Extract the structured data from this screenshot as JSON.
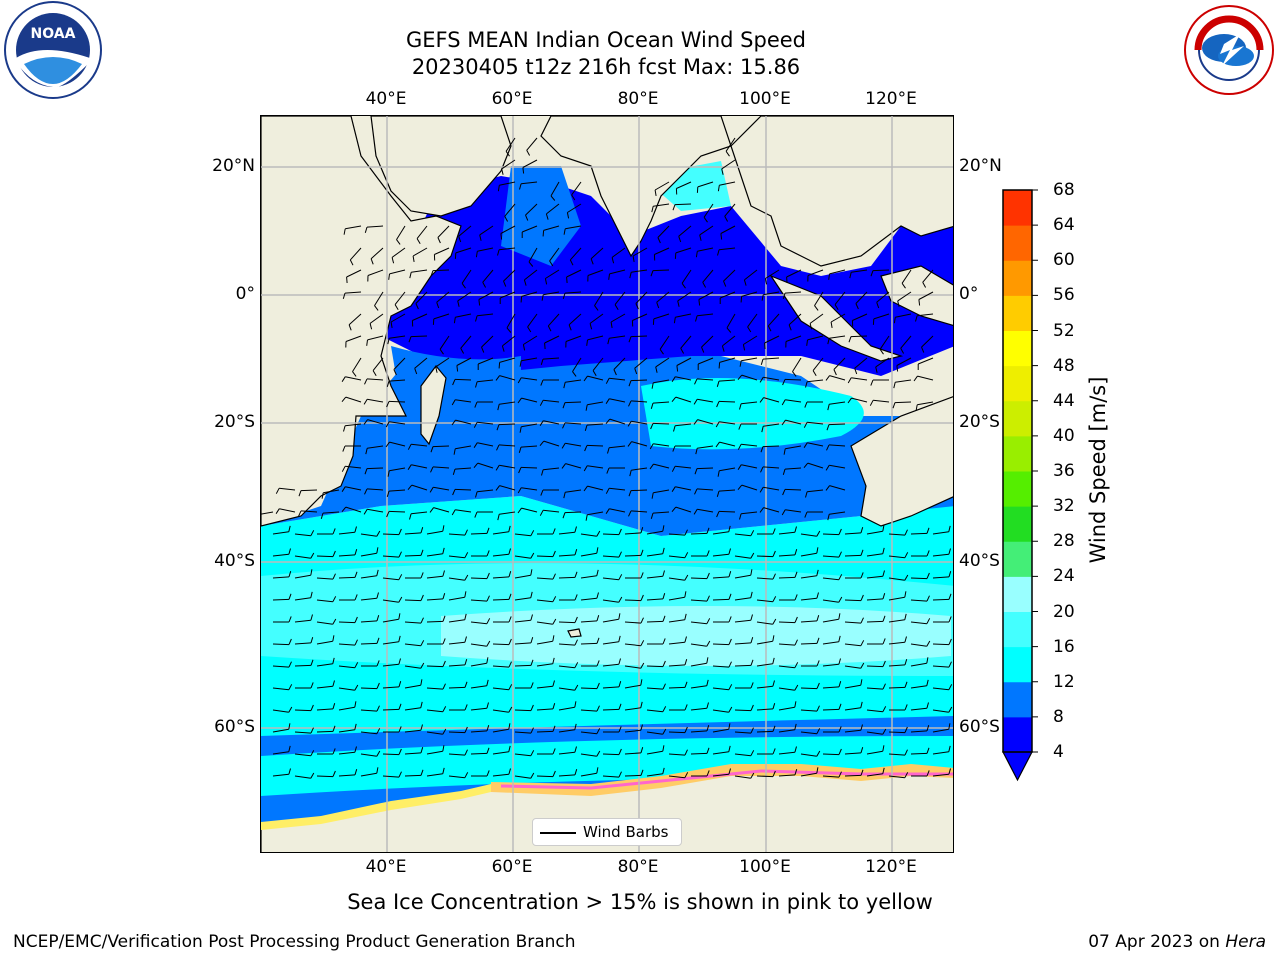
{
  "title": {
    "line1": "GEFS MEAN Indian Ocean Wind Speed",
    "line2": "20230405 t12z 216h fcst   Max: 15.86"
  },
  "map": {
    "lon_ticks": [
      "40°E",
      "60°E",
      "80°E",
      "100°E",
      "120°E"
    ],
    "lat_ticks": [
      "20°N",
      "0°",
      "20°S",
      "40°S",
      "60°S"
    ],
    "legend_label": "Wind Barbs",
    "gridlines": true
  },
  "colorbar": {
    "title": "Wind Speed [m/s]",
    "levels": [
      4,
      8,
      12,
      16,
      20,
      24,
      28,
      32,
      36,
      40,
      44,
      48,
      52,
      56,
      60,
      64,
      68
    ],
    "colors": [
      "#0000ff",
      "#0077ff",
      "#00ffff",
      "#44ffff",
      "#99ffff",
      "#44ee77",
      "#22dd22",
      "#55ee00",
      "#99ee00",
      "#ccee00",
      "#eeee00",
      "#ffff00",
      "#ffcc00",
      "#ff9900",
      "#ff6600",
      "#ff3300",
      "#ff0000"
    ],
    "extend_color": "#0000ff"
  },
  "bottom_note": "Sea Ice Concentration > 15% is shown in pink to yellow",
  "footer": {
    "left": "NCEP/EMC/Verification Post Processing Product Generation Branch",
    "right_date": "07 Apr 2023 on ",
    "right_host": "Hera"
  },
  "logos": {
    "left": "noaa-logo",
    "right": "nws-logo"
  }
}
